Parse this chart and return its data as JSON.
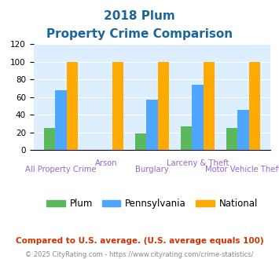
{
  "title_line1": "2018 Plum",
  "title_line2": "Property Crime Comparison",
  "categories": [
    "All Property Crime",
    "Arson",
    "Burglary",
    "Larceny & Theft",
    "Motor Vehicle Theft"
  ],
  "plum_values": [
    25,
    0,
    19,
    27,
    25
  ],
  "pennsylvania_values": [
    68,
    0,
    57,
    74,
    46
  ],
  "national_values": [
    100,
    100,
    100,
    100,
    100
  ],
  "plum_color": "#5cb85c",
  "pennsylvania_color": "#4da6ff",
  "national_color": "#ffaa00",
  "bar_width": 0.25,
  "ylim": [
    0,
    120
  ],
  "yticks": [
    0,
    20,
    40,
    60,
    80,
    100,
    120
  ],
  "bg_color": "#ddeeff",
  "title_color": "#1a6699",
  "xlabel_color": "#9966cc",
  "footer_text": "Compared to U.S. average. (U.S. average equals 100)",
  "copyright_text": "© 2025 CityRating.com - https://www.cityrating.com/crime-statistics/",
  "footer_color": "#cc3300",
  "copyright_color": "#888888",
  "legend_labels": [
    "Plum",
    "Pennsylvania",
    "National"
  ],
  "group_labels_top": [
    "",
    "Arson",
    "",
    "Larceny & Theft",
    ""
  ],
  "group_labels_bottom": [
    "All Property Crime",
    "",
    "Burglary",
    "",
    "Motor Vehicle Theft"
  ]
}
